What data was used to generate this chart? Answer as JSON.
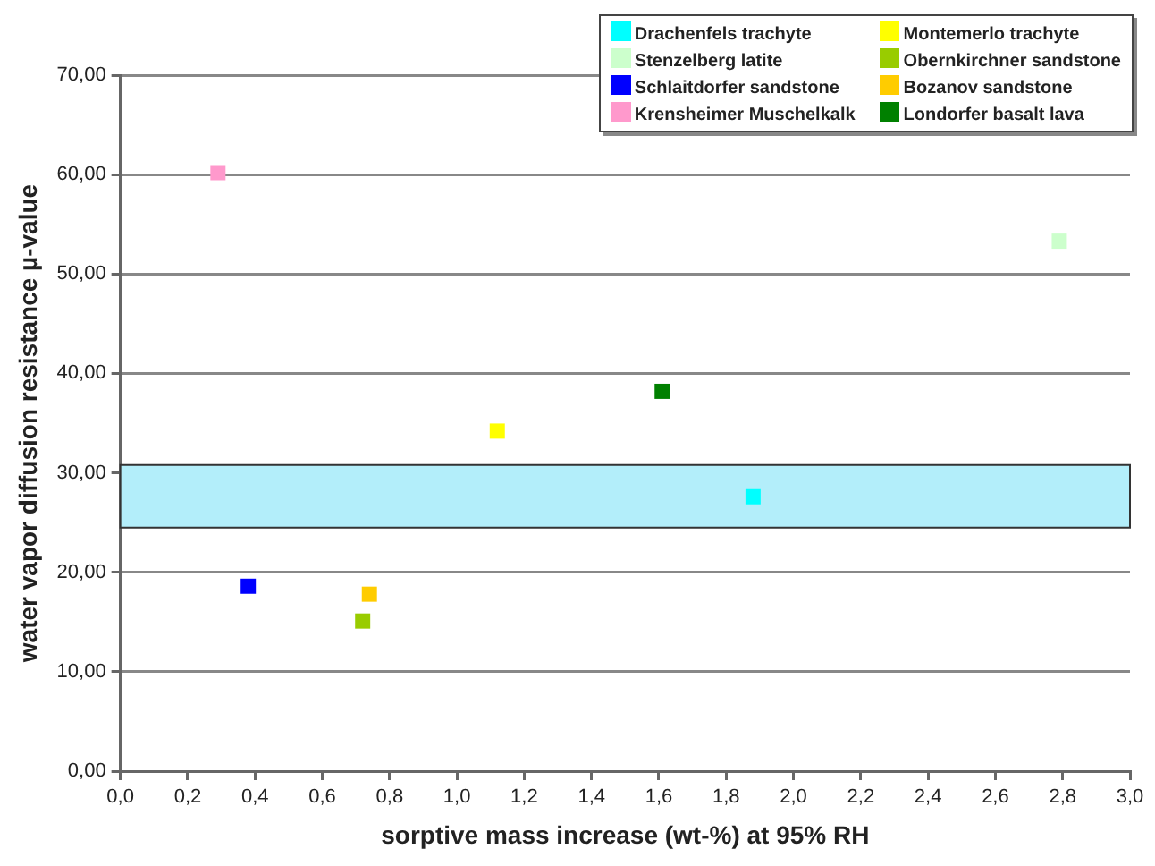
{
  "chart_data": {
    "type": "scatter",
    "xlabel": "sorptive mass increase (wt-%) at 95% RH",
    "ylabel": "water vapor diffusion resistance µ-value",
    "series": [
      {
        "name": "Drachenfels trachyte",
        "color": "#00ffff",
        "x": [
          1.88
        ],
        "values": [
          27.6
        ]
      },
      {
        "name": "Montemerlo trachyte",
        "color": "#ffff00",
        "x": [
          1.12
        ],
        "values": [
          34.2
        ]
      },
      {
        "name": "Stenzelberg latite",
        "color": "#ccffcc",
        "x": [
          2.79
        ],
        "values": [
          53.3
        ]
      },
      {
        "name": "Obernkirchner sandstone",
        "color": "#99cc00",
        "x": [
          0.72
        ],
        "values": [
          15.1
        ]
      },
      {
        "name": "Schlaitdorfer sandstone",
        "color": "#0000ff",
        "x": [
          0.38
        ],
        "values": [
          18.6
        ]
      },
      {
        "name": "Bozanov sandstone",
        "color": "#ffcc00",
        "x": [
          0.74
        ],
        "values": [
          17.8
        ]
      },
      {
        "name": "Krensheimer Muschelkalk",
        "color": "#ff99cc",
        "x": [
          0.29
        ],
        "values": [
          60.2
        ]
      },
      {
        "name": "Londorfer basalt lava",
        "color": "#008000",
        "x": [
          1.61
        ],
        "values": [
          38.2
        ]
      }
    ],
    "bands": [
      {
        "axis": "y",
        "from": 24.5,
        "to": 30.8,
        "color": "#b3eefa"
      }
    ],
    "xlim": [
      0,
      3
    ],
    "xticks": [
      {
        "value": 0,
        "label": "0,0"
      },
      {
        "value": 0.2,
        "label": "0,2"
      },
      {
        "value": 0.4,
        "label": "0,4"
      },
      {
        "value": 0.6,
        "label": "0,6"
      },
      {
        "value": 0.8,
        "label": "0,8"
      },
      {
        "value": 1,
        "label": "1,0"
      },
      {
        "value": 1.2,
        "label": "1,2"
      },
      {
        "value": 1.4,
        "label": "1,4"
      },
      {
        "value": 1.6,
        "label": "1,6"
      },
      {
        "value": 1.8,
        "label": "1,8"
      },
      {
        "value": 2,
        "label": "2,0"
      },
      {
        "value": 2.2,
        "label": "2,2"
      },
      {
        "value": 2.4,
        "label": "2,4"
      },
      {
        "value": 2.6,
        "label": "2,6"
      },
      {
        "value": 2.8,
        "label": "2,8"
      },
      {
        "value": 3,
        "label": "3,0"
      }
    ],
    "ylim": [
      0,
      70
    ],
    "yticks": [
      {
        "value": 0,
        "label": "0,00"
      },
      {
        "value": 10,
        "label": "10,00"
      },
      {
        "value": 20,
        "label": "20,00"
      },
      {
        "value": 30,
        "label": "30,00"
      },
      {
        "value": 40,
        "label": "40,00"
      },
      {
        "value": 50,
        "label": "50,00"
      },
      {
        "value": 60,
        "label": "60,00"
      },
      {
        "value": 70,
        "label": "70,00"
      }
    ],
    "grid": "y",
    "legend": "top right",
    "marker": "square"
  }
}
